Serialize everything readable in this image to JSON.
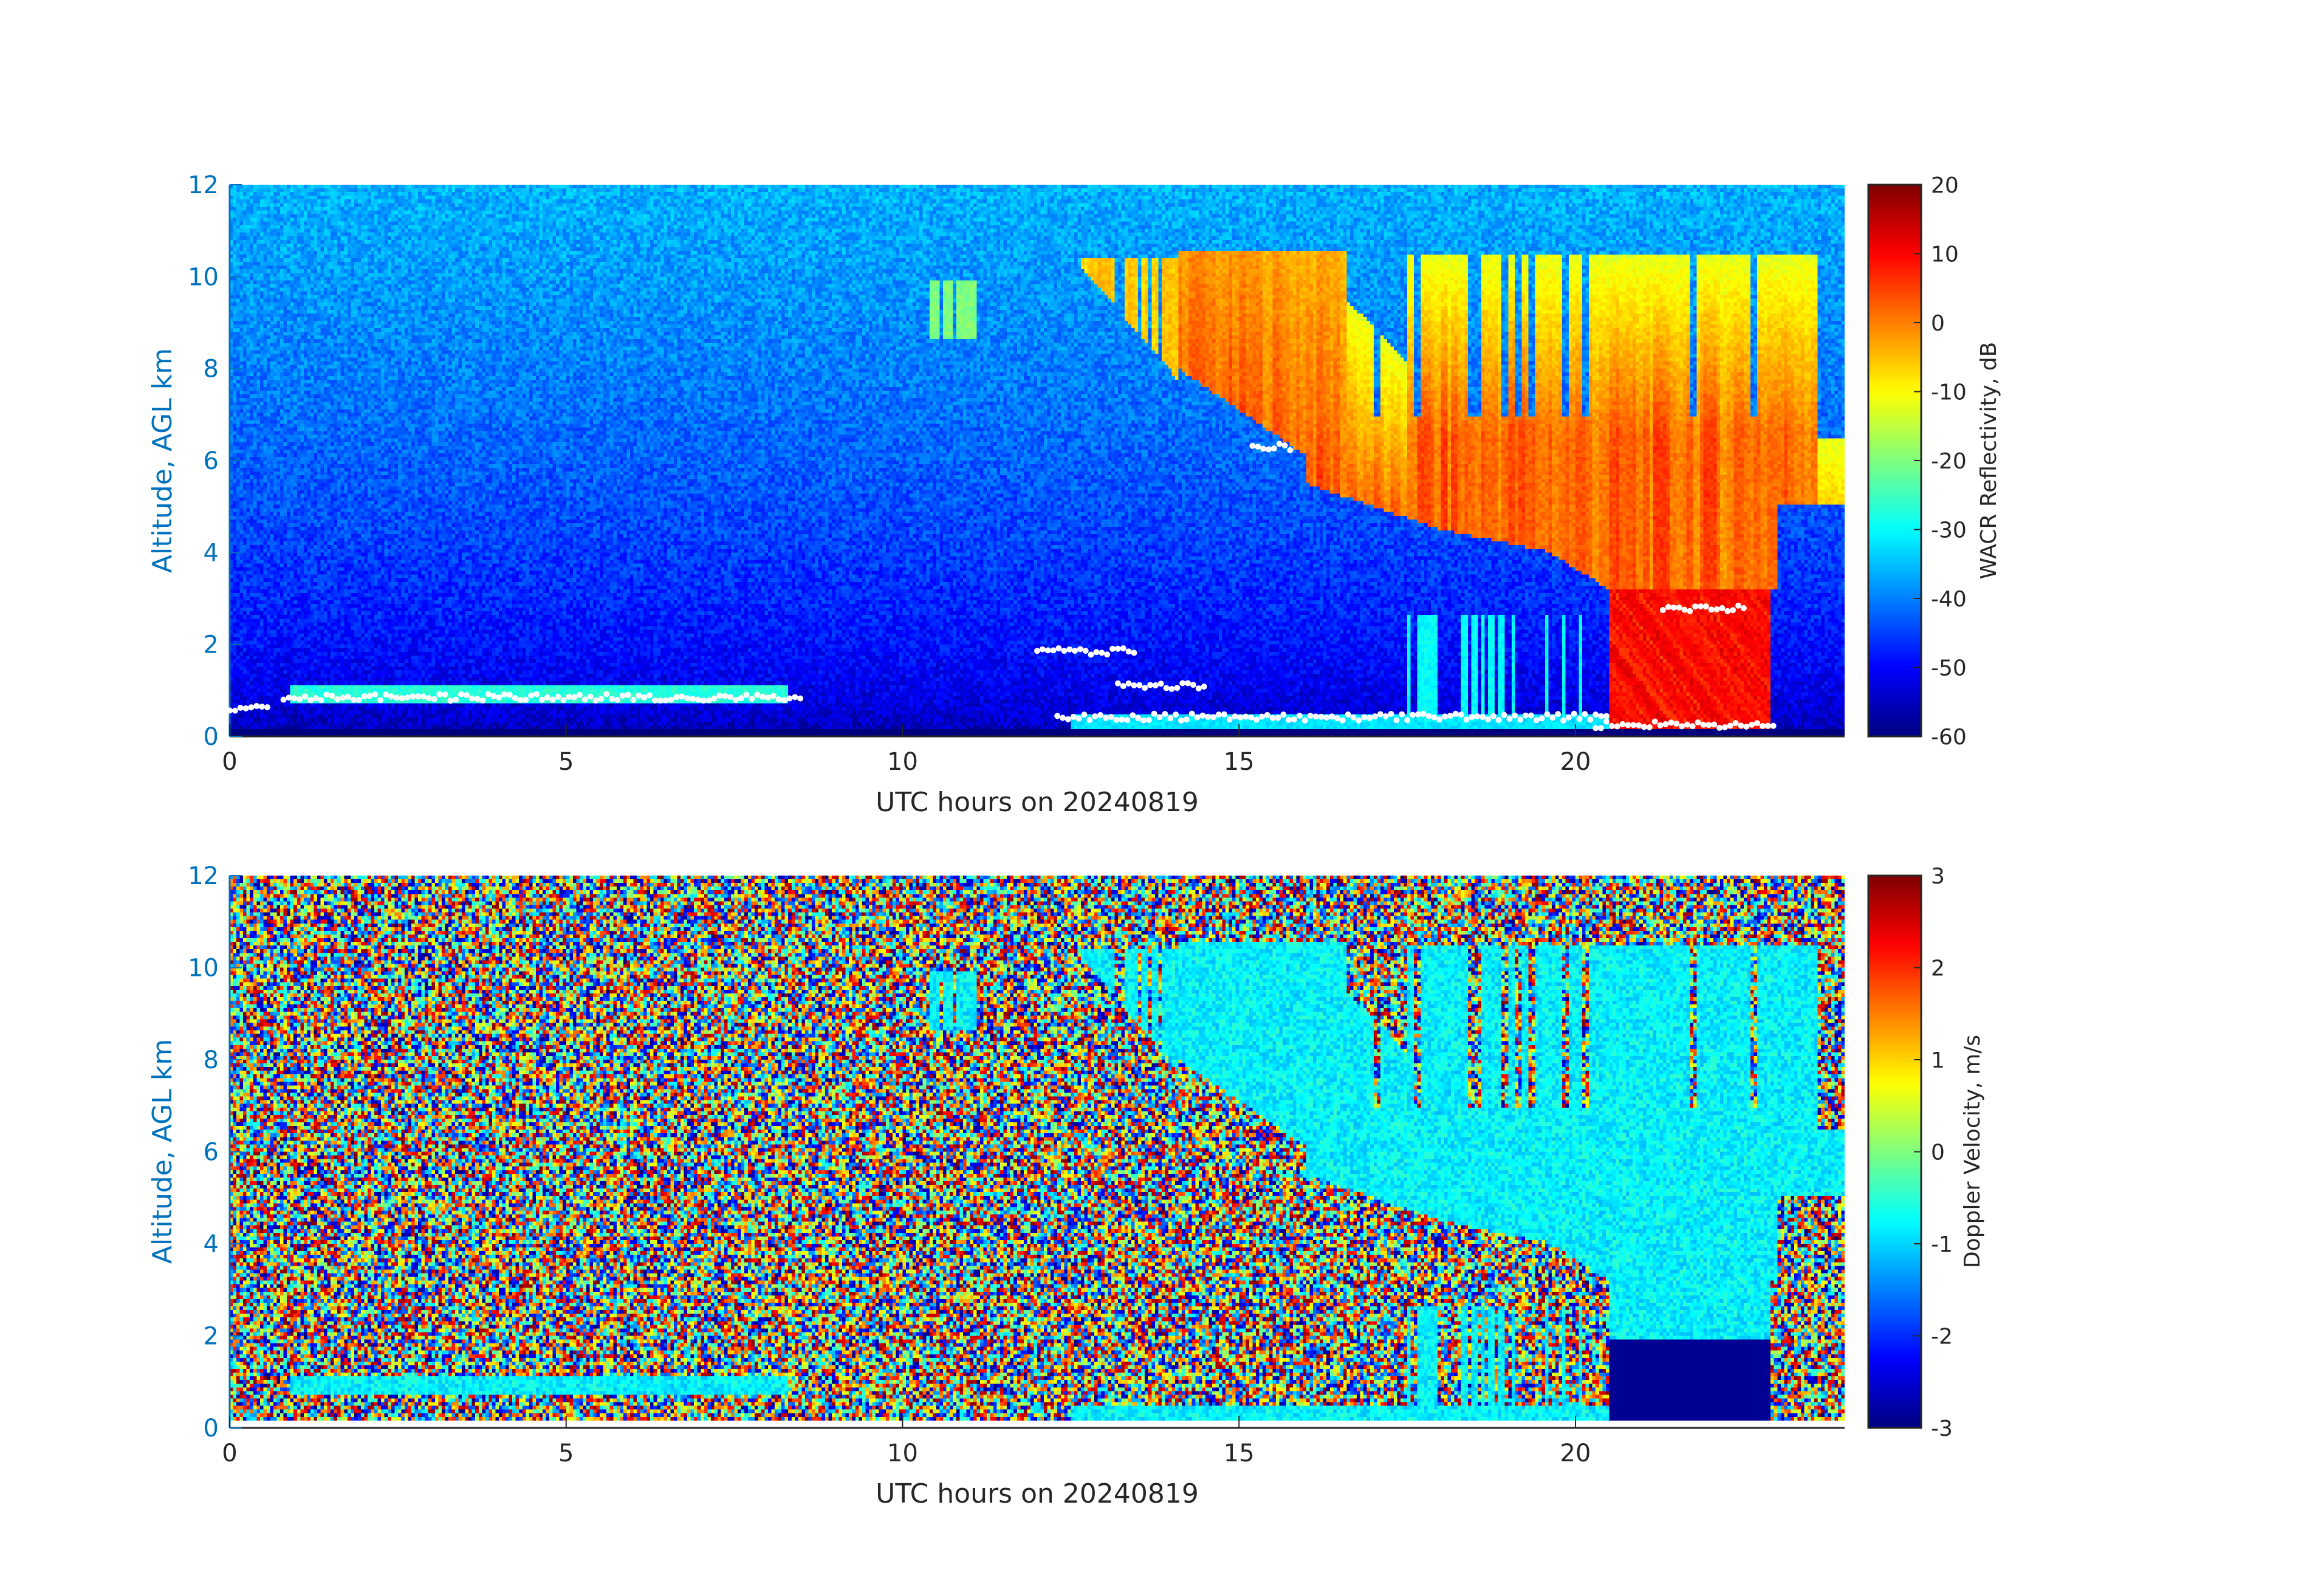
{
  "chart_data": [
    {
      "type": "heatmap",
      "xlabel": "UTC hours on 20240819",
      "ylabel": "Altitude, AGL km",
      "xlim": [
        0,
        24
      ],
      "ylim": [
        0,
        12
      ],
      "xticks": [
        "0",
        "5",
        "10",
        "15",
        "20"
      ],
      "yticks": [
        "0",
        "2",
        "4",
        "6",
        "8",
        "10",
        "12"
      ],
      "colorbar": {
        "label": "WACR Reflectivity, dB",
        "range": [
          -60,
          20
        ],
        "ticks": [
          "-60",
          "-50",
          "-40",
          "-30",
          "-20",
          "-10",
          "0",
          "10",
          "20"
        ],
        "colormap": "jet"
      },
      "overlay_markers": {
        "color": "#ffffff",
        "shape": "dot"
      }
    },
    {
      "type": "heatmap",
      "xlabel": "UTC hours on 20240819",
      "ylabel": "Altitude, AGL km",
      "xlim": [
        0,
        24
      ],
      "ylim": [
        0,
        12
      ],
      "xticks": [
        "0",
        "5",
        "10",
        "15",
        "20"
      ],
      "yticks": [
        "0",
        "2",
        "4",
        "6",
        "8",
        "10",
        "12"
      ],
      "colorbar": {
        "label": "Doppler Velocity, m/s",
        "range": [
          -3,
          3
        ],
        "ticks": [
          "-3",
          "-2",
          "-1",
          "0",
          "1",
          "2",
          "3"
        ],
        "colormap": "jet"
      }
    }
  ],
  "colors": {
    "ytick": "#0072BD",
    "text": "#262626"
  }
}
